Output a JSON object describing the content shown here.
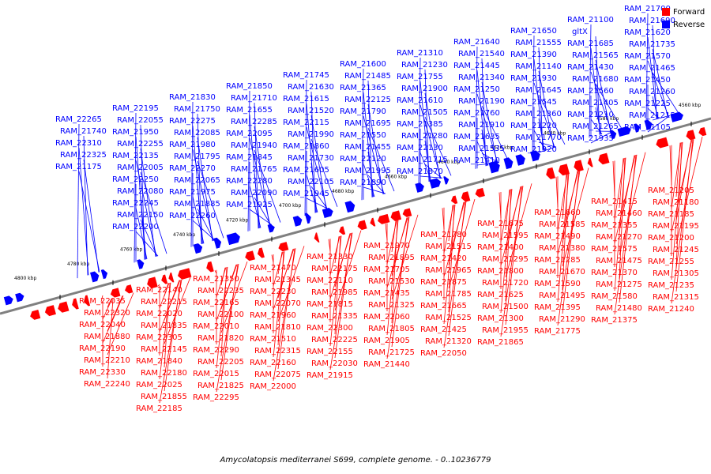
{
  "colors": {
    "forward": "#ff0000",
    "reverse": "#0000ff",
    "axis": "#808080"
  },
  "legend": [
    {
      "label": "Forward",
      "color": "#ff0000"
    },
    {
      "label": "Reverse",
      "color": "#0000ff"
    }
  ],
  "caption": "Amycolatopsis mediterranei S699, complete genome. - 0..10236779",
  "ticks": [
    "4560 kbp",
    "4580 kbp",
    "4600 kbp",
    "4620 kbp",
    "4640 kbp",
    "4660 kbp",
    "4680 kbp",
    "4700 kbp",
    "4720 kbp",
    "4740 kbp",
    "4760 kbp",
    "4780 kbp",
    "4800 kbp"
  ],
  "genes": [
    {
      "name": "RAM_21700",
      "strand": "reverse"
    },
    {
      "name": "RAM_21690",
      "strand": "reverse"
    },
    {
      "name": "RAM_21620",
      "strand": "reverse"
    },
    {
      "name": "RAM_21735",
      "strand": "reverse"
    },
    {
      "name": "RAM_21570",
      "strand": "reverse"
    },
    {
      "name": "RAM_21465",
      "strand": "reverse"
    },
    {
      "name": "RAM_21450",
      "strand": "reverse"
    },
    {
      "name": "RAM_21260",
      "strand": "reverse"
    },
    {
      "name": "RAM_21225",
      "strand": "reverse"
    },
    {
      "name": "RAM_21215",
      "strand": "reverse"
    },
    {
      "name": "RAM_21105",
      "strand": "reverse"
    },
    {
      "name": "RAM_21100",
      "strand": "reverse"
    },
    {
      "name": "gltX",
      "strand": "reverse"
    },
    {
      "name": "RAM_21685",
      "strand": "reverse"
    },
    {
      "name": "RAM_21565",
      "strand": "reverse"
    },
    {
      "name": "RAM_21430",
      "strand": "reverse"
    },
    {
      "name": "RAM_21680",
      "strand": "reverse"
    },
    {
      "name": "RAM_21560",
      "strand": "reverse"
    },
    {
      "name": "RAM_21405",
      "strand": "reverse"
    },
    {
      "name": "RAM_21210",
      "strand": "reverse"
    },
    {
      "name": "RAM_21265",
      "strand": "reverse"
    },
    {
      "name": "RAM_21935",
      "strand": "reverse"
    },
    {
      "name": "RAM_21650",
      "strand": "reverse"
    },
    {
      "name": "RAM_21555",
      "strand": "reverse"
    },
    {
      "name": "RAM_21390",
      "strand": "reverse"
    },
    {
      "name": "RAM_21140",
      "strand": "reverse"
    },
    {
      "name": "RAM_21930",
      "strand": "reverse"
    },
    {
      "name": "RAM_21645",
      "strand": "reverse"
    },
    {
      "name": "RAM_21545",
      "strand": "reverse"
    },
    {
      "name": "RAM_21360",
      "strand": "reverse"
    },
    {
      "name": "RAM_21220",
      "strand": "reverse"
    },
    {
      "name": "RAM_21770",
      "strand": "reverse"
    },
    {
      "name": "RAM_21920",
      "strand": "reverse"
    },
    {
      "name": "RAM_21640",
      "strand": "reverse"
    },
    {
      "name": "RAM_21540",
      "strand": "reverse"
    },
    {
      "name": "RAM_21445",
      "strand": "reverse"
    },
    {
      "name": "RAM_21340",
      "strand": "reverse"
    },
    {
      "name": "RAM_21250",
      "strand": "reverse"
    },
    {
      "name": "RAM_21190",
      "strand": "reverse"
    },
    {
      "name": "RAM_21760",
      "strand": "reverse"
    },
    {
      "name": "RAM_21910",
      "strand": "reverse"
    },
    {
      "name": "RAM_21635",
      "strand": "reverse"
    },
    {
      "name": "RAM_21535",
      "strand": "reverse"
    },
    {
      "name": "RAM_21410",
      "strand": "reverse"
    },
    {
      "name": "RAM_21310",
      "strand": "reverse"
    },
    {
      "name": "RAM_21230",
      "strand": "reverse"
    },
    {
      "name": "RAM_21755",
      "strand": "reverse"
    },
    {
      "name": "RAM_21900",
      "strand": "reverse"
    },
    {
      "name": "RAM_21610",
      "strand": "reverse"
    },
    {
      "name": "RAM_21505",
      "strand": "reverse"
    },
    {
      "name": "RAM_21385",
      "strand": "reverse"
    },
    {
      "name": "RAM_21280",
      "strand": "reverse"
    },
    {
      "name": "RAM_22130",
      "strand": "reverse"
    },
    {
      "name": "RAM_21715",
      "strand": "reverse"
    },
    {
      "name": "RAM_21870",
      "strand": "reverse"
    },
    {
      "name": "RAM_21600",
      "strand": "reverse"
    },
    {
      "name": "RAM_21485",
      "strand": "reverse"
    },
    {
      "name": "RAM_21365",
      "strand": "reverse"
    },
    {
      "name": "RAM_22125",
      "strand": "reverse"
    },
    {
      "name": "RAM_21790",
      "strand": "reverse"
    },
    {
      "name": "RAM_21695",
      "strand": "reverse"
    },
    {
      "name": "RAM_21550",
      "strand": "reverse"
    },
    {
      "name": "RAM_21455",
      "strand": "reverse"
    },
    {
      "name": "RAM_22120",
      "strand": "reverse"
    },
    {
      "name": "RAM_21995",
      "strand": "reverse"
    },
    {
      "name": "RAM_21890",
      "strand": "reverse"
    },
    {
      "name": "RAM_21745",
      "strand": "reverse"
    },
    {
      "name": "RAM_21630",
      "strand": "reverse"
    },
    {
      "name": "RAM_21615",
      "strand": "reverse"
    },
    {
      "name": "RAM_21520",
      "strand": "reverse"
    },
    {
      "name": "RAM_22115",
      "strand": "reverse"
    },
    {
      "name": "RAM_21990",
      "strand": "reverse"
    },
    {
      "name": "RAM_21860",
      "strand": "reverse"
    },
    {
      "name": "RAM_21730",
      "strand": "reverse"
    },
    {
      "name": "RAM_21605",
      "strand": "reverse"
    },
    {
      "name": "RAM_22105",
      "strand": "reverse"
    },
    {
      "name": "RAM_21945",
      "strand": "reverse"
    },
    {
      "name": "RAM_21850",
      "strand": "reverse"
    },
    {
      "name": "RAM_21710",
      "strand": "reverse"
    },
    {
      "name": "RAM_21655",
      "strand": "reverse"
    },
    {
      "name": "RAM_22285",
      "strand": "reverse"
    },
    {
      "name": "RAM_22095",
      "strand": "reverse"
    },
    {
      "name": "RAM_21940",
      "strand": "reverse"
    },
    {
      "name": "RAM_21845",
      "strand": "reverse"
    },
    {
      "name": "RAM_21765",
      "strand": "reverse"
    },
    {
      "name": "RAM_22280",
      "strand": "reverse"
    },
    {
      "name": "RAM_22090",
      "strand": "reverse"
    },
    {
      "name": "RAM_21925",
      "strand": "reverse"
    },
    {
      "name": "RAM_21830",
      "strand": "reverse"
    },
    {
      "name": "RAM_21750",
      "strand": "reverse"
    },
    {
      "name": "RAM_22275",
      "strand": "reverse"
    },
    {
      "name": "RAM_22085",
      "strand": "reverse"
    },
    {
      "name": "RAM_21980",
      "strand": "reverse"
    },
    {
      "name": "RAM_21795",
      "strand": "reverse"
    },
    {
      "name": "RAM_22270",
      "strand": "reverse"
    },
    {
      "name": "RAM_22065",
      "strand": "reverse"
    },
    {
      "name": "RAM_21975",
      "strand": "reverse"
    },
    {
      "name": "RAM_21885",
      "strand": "reverse"
    },
    {
      "name": "RAM_22260",
      "strand": "reverse"
    },
    {
      "name": "RAM_22195",
      "strand": "reverse"
    },
    {
      "name": "RAM_22055",
      "strand": "reverse"
    },
    {
      "name": "RAM_21950",
      "strand": "reverse"
    },
    {
      "name": "RAM_22255",
      "strand": "reverse"
    },
    {
      "name": "RAM_22135",
      "strand": "reverse"
    },
    {
      "name": "RAM_22005",
      "strand": "reverse"
    },
    {
      "name": "RAM_22250",
      "strand": "reverse"
    },
    {
      "name": "RAM_22080",
      "strand": "reverse"
    },
    {
      "name": "RAM_22245",
      "strand": "reverse"
    },
    {
      "name": "RAM_22150",
      "strand": "reverse"
    },
    {
      "name": "RAM_22200",
      "strand": "reverse"
    },
    {
      "name": "RAM_22265",
      "strand": "reverse"
    },
    {
      "name": "RAM_21740",
      "strand": "reverse"
    },
    {
      "name": "RAM_22310",
      "strand": "reverse"
    },
    {
      "name": "RAM_22325",
      "strand": "reverse"
    },
    {
      "name": "RAM_21175",
      "strand": "reverse"
    },
    {
      "name": "RAM_21205",
      "strand": "forward"
    },
    {
      "name": "RAM_21180",
      "strand": "forward"
    },
    {
      "name": "RAM_21185",
      "strand": "forward"
    },
    {
      "name": "RAM_21195",
      "strand": "forward"
    },
    {
      "name": "RAM_21200",
      "strand": "forward"
    },
    {
      "name": "RAM_21245",
      "strand": "forward"
    },
    {
      "name": "RAM_21255",
      "strand": "forward"
    },
    {
      "name": "RAM_21305",
      "strand": "forward"
    },
    {
      "name": "RAM_21235",
      "strand": "forward"
    },
    {
      "name": "RAM_21315",
      "strand": "forward"
    },
    {
      "name": "RAM_21240",
      "strand": "forward"
    },
    {
      "name": "RAM_21415",
      "strand": "forward"
    },
    {
      "name": "RAM_21460",
      "strand": "forward"
    },
    {
      "name": "RAM_21355",
      "strand": "forward"
    },
    {
      "name": "RAM_21270",
      "strand": "forward"
    },
    {
      "name": "RAM_21575",
      "strand": "forward"
    },
    {
      "name": "RAM_21475",
      "strand": "forward"
    },
    {
      "name": "RAM_21370",
      "strand": "forward"
    },
    {
      "name": "RAM_21275",
      "strand": "forward"
    },
    {
      "name": "RAM_21580",
      "strand": "forward"
    },
    {
      "name": "RAM_21480",
      "strand": "forward"
    },
    {
      "name": "RAM_21375",
      "strand": "forward"
    },
    {
      "name": "RAM_21660",
      "strand": "forward"
    },
    {
      "name": "RAM_21585",
      "strand": "forward"
    },
    {
      "name": "RAM_21490",
      "strand": "forward"
    },
    {
      "name": "RAM_21380",
      "strand": "forward"
    },
    {
      "name": "RAM_21285",
      "strand": "forward"
    },
    {
      "name": "RAM_21670",
      "strand": "forward"
    },
    {
      "name": "RAM_21590",
      "strand": "forward"
    },
    {
      "name": "RAM_21495",
      "strand": "forward"
    },
    {
      "name": "RAM_21395",
      "strand": "forward"
    },
    {
      "name": "RAM_21290",
      "strand": "forward"
    },
    {
      "name": "RAM_21775",
      "strand": "forward"
    },
    {
      "name": "RAM_21675",
      "strand": "forward"
    },
    {
      "name": "RAM_21595",
      "strand": "forward"
    },
    {
      "name": "RAM_21400",
      "strand": "forward"
    },
    {
      "name": "RAM_21295",
      "strand": "forward"
    },
    {
      "name": "RAM_21800",
      "strand": "forward"
    },
    {
      "name": "RAM_21720",
      "strand": "forward"
    },
    {
      "name": "RAM_21625",
      "strand": "forward"
    },
    {
      "name": "RAM_21500",
      "strand": "forward"
    },
    {
      "name": "RAM_21300",
      "strand": "forward"
    },
    {
      "name": "RAM_21955",
      "strand": "forward"
    },
    {
      "name": "RAM_21865",
      "strand": "forward"
    },
    {
      "name": "RAM_21780",
      "strand": "forward"
    },
    {
      "name": "RAM_21515",
      "strand": "forward"
    },
    {
      "name": "RAM_21420",
      "strand": "forward"
    },
    {
      "name": "RAM_21965",
      "strand": "forward"
    },
    {
      "name": "RAM_21875",
      "strand": "forward"
    },
    {
      "name": "RAM_21785",
      "strand": "forward"
    },
    {
      "name": "RAM_21665",
      "strand": "forward"
    },
    {
      "name": "RAM_21525",
      "strand": "forward"
    },
    {
      "name": "RAM_21425",
      "strand": "forward"
    },
    {
      "name": "RAM_21320",
      "strand": "forward"
    },
    {
      "name": "RAM_22050",
      "strand": "forward"
    },
    {
      "name": "RAM_21970",
      "strand": "forward"
    },
    {
      "name": "RAM_21895",
      "strand": "forward"
    },
    {
      "name": "RAM_21705",
      "strand": "forward"
    },
    {
      "name": "RAM_21530",
      "strand": "forward"
    },
    {
      "name": "RAM_21435",
      "strand": "forward"
    },
    {
      "name": "RAM_21325",
      "strand": "forward"
    },
    {
      "name": "RAM_22060",
      "strand": "forward"
    },
    {
      "name": "RAM_21805",
      "strand": "forward"
    },
    {
      "name": "RAM_21905",
      "strand": "forward"
    },
    {
      "name": "RAM_21725",
      "strand": "forward"
    },
    {
      "name": "RAM_21440",
      "strand": "forward"
    },
    {
      "name": "RAM_21330",
      "strand": "forward"
    },
    {
      "name": "RAM_22175",
      "strand": "forward"
    },
    {
      "name": "RAM_22110",
      "strand": "forward"
    },
    {
      "name": "RAM_21985",
      "strand": "forward"
    },
    {
      "name": "RAM_21815",
      "strand": "forward"
    },
    {
      "name": "RAM_21335",
      "strand": "forward"
    },
    {
      "name": "RAM_22300",
      "strand": "forward"
    },
    {
      "name": "RAM_22225",
      "strand": "forward"
    },
    {
      "name": "RAM_22155",
      "strand": "forward"
    },
    {
      "name": "RAM_22030",
      "strand": "forward"
    },
    {
      "name": "RAM_21915",
      "strand": "forward"
    },
    {
      "name": "RAM_21470",
      "strand": "forward"
    },
    {
      "name": "RAM_21345",
      "strand": "forward"
    },
    {
      "name": "RAM_22230",
      "strand": "forward"
    },
    {
      "name": "RAM_22070",
      "strand": "forward"
    },
    {
      "name": "RAM_21960",
      "strand": "forward"
    },
    {
      "name": "RAM_21810",
      "strand": "forward"
    },
    {
      "name": "RAM_21510",
      "strand": "forward"
    },
    {
      "name": "RAM_22315",
      "strand": "forward"
    },
    {
      "name": "RAM_22160",
      "strand": "forward"
    },
    {
      "name": "RAM_22075",
      "strand": "forward"
    },
    {
      "name": "RAM_22000",
      "strand": "forward"
    },
    {
      "name": "RAM_21350",
      "strand": "forward"
    },
    {
      "name": "RAM_22235",
      "strand": "forward"
    },
    {
      "name": "RAM_22165",
      "strand": "forward"
    },
    {
      "name": "RAM_22100",
      "strand": "forward"
    },
    {
      "name": "RAM_22010",
      "strand": "forward"
    },
    {
      "name": "RAM_21820",
      "strand": "forward"
    },
    {
      "name": "RAM_22290",
      "strand": "forward"
    },
    {
      "name": "RAM_22205",
      "strand": "forward"
    },
    {
      "name": "RAM_22015",
      "strand": "forward"
    },
    {
      "name": "RAM_21825",
      "strand": "forward"
    },
    {
      "name": "RAM_22295",
      "strand": "forward"
    },
    {
      "name": "RAM_22140",
      "strand": "forward"
    },
    {
      "name": "RAM_22215",
      "strand": "forward"
    },
    {
      "name": "RAM_22020",
      "strand": "forward"
    },
    {
      "name": "RAM_21835",
      "strand": "forward"
    },
    {
      "name": "RAM_22305",
      "strand": "forward"
    },
    {
      "name": "RAM_22145",
      "strand": "forward"
    },
    {
      "name": "RAM_21840",
      "strand": "forward"
    },
    {
      "name": "RAM_22180",
      "strand": "forward"
    },
    {
      "name": "RAM_22025",
      "strand": "forward"
    },
    {
      "name": "RAM_21855",
      "strand": "forward"
    },
    {
      "name": "RAM_22185",
      "strand": "forward"
    },
    {
      "name": "RAM_22035",
      "strand": "forward"
    },
    {
      "name": "RAM_22320",
      "strand": "forward"
    },
    {
      "name": "RAM_22040",
      "strand": "forward"
    },
    {
      "name": "RAM_21880",
      "strand": "forward"
    },
    {
      "name": "RAM_22190",
      "strand": "forward"
    },
    {
      "name": "RAM_22210",
      "strand": "forward"
    },
    {
      "name": "RAM_22330",
      "strand": "forward"
    },
    {
      "name": "RAM_22240",
      "strand": "forward"
    }
  ]
}
